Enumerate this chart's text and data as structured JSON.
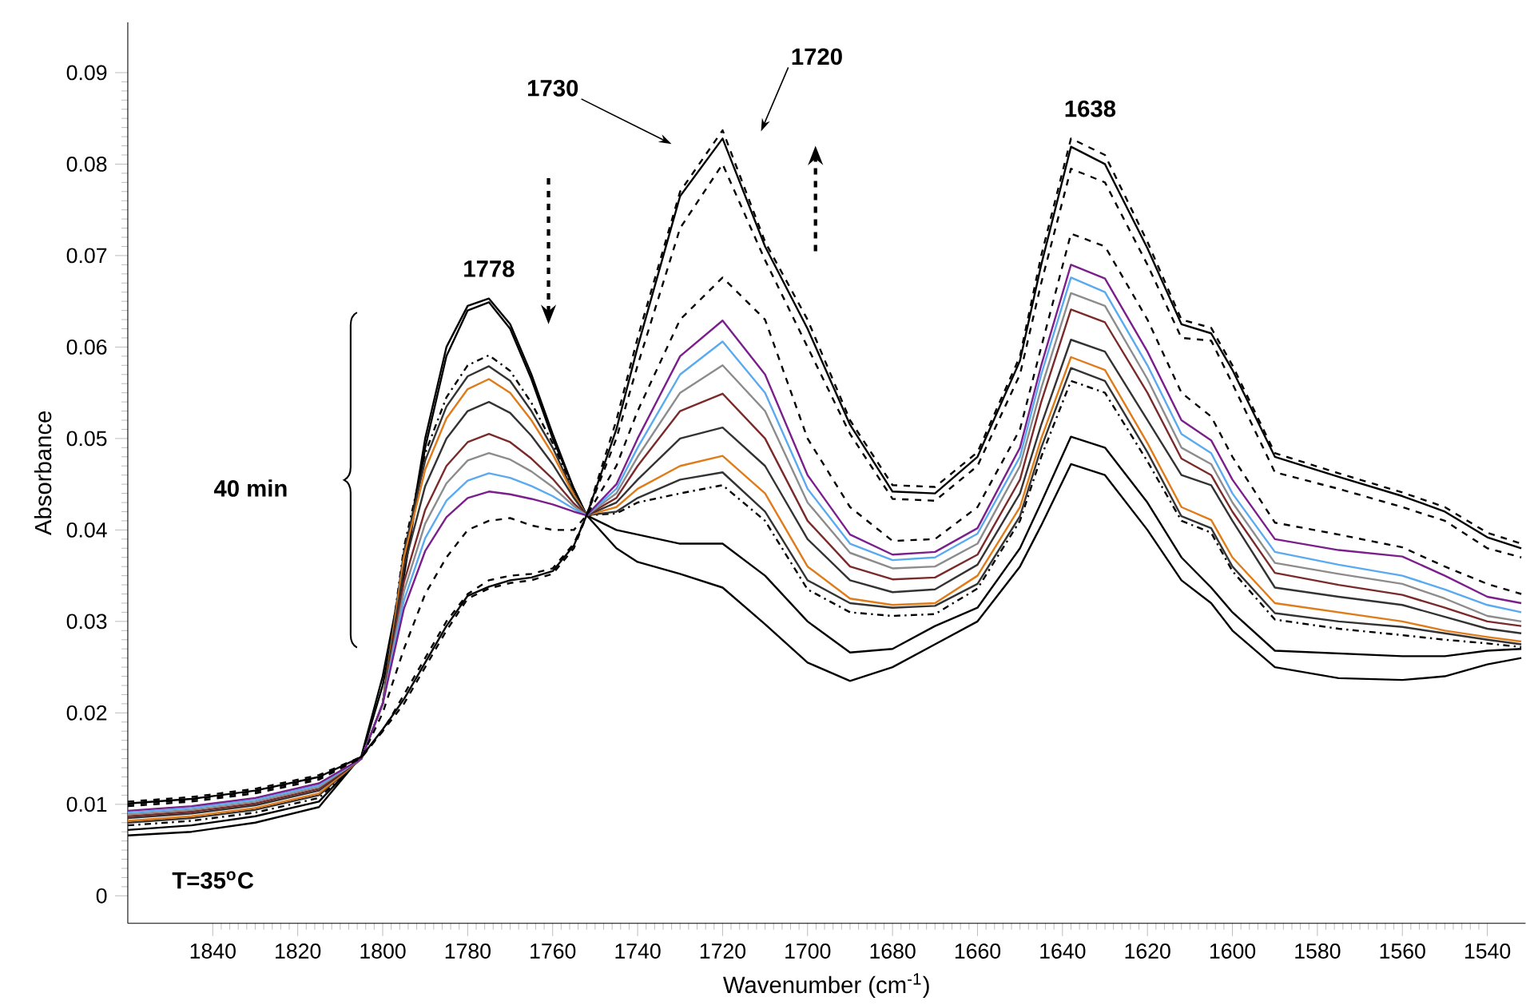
{
  "chart_data": {
    "type": "line",
    "xlabel": "Wavenumber (cm$^{-1}$)",
    "ylabel": "Absorbance",
    "xlim": [
      1860,
      1531
    ],
    "ylim": [
      -0.003,
      0.0955
    ],
    "xticks": [
      1840,
      1820,
      1800,
      1780,
      1760,
      1740,
      1720,
      1700,
      1680,
      1660,
      1640,
      1620,
      1600,
      1580,
      1560,
      1540
    ],
    "yticks": [
      0,
      0.01,
      0.02,
      0.03,
      0.04,
      0.05,
      0.06,
      0.07,
      0.08,
      0.09
    ],
    "x": [
      1860,
      1845,
      1830,
      1815,
      1805,
      1800,
      1795,
      1790,
      1785,
      1780,
      1775,
      1770,
      1765,
      1760,
      1755,
      1752,
      1745,
      1740,
      1730,
      1720,
      1710,
      1700,
      1690,
      1680,
      1670,
      1660,
      1650,
      1645,
      1638,
      1630,
      1620,
      1612,
      1605,
      1600,
      1590,
      1575,
      1560,
      1550,
      1540,
      1532
    ],
    "series": [
      {
        "color": "#000000",
        "line_style": "solid",
        "values": [
          0.0066,
          0.007,
          0.008,
          0.0097,
          0.0153,
          0.024,
          0.036,
          0.05,
          0.06,
          0.0645,
          0.0653,
          0.0625,
          0.057,
          0.0505,
          0.0445,
          0.0416,
          0.038,
          0.0365,
          0.0352,
          0.0337,
          0.0297,
          0.0255,
          0.0235,
          0.025,
          0.0275,
          0.03,
          0.036,
          0.0405,
          0.0472,
          0.046,
          0.04,
          0.0345,
          0.032,
          0.029,
          0.025,
          0.0238,
          0.0236,
          0.024,
          0.0253,
          0.026
        ]
      },
      {
        "color": "#000000",
        "line_style": "solid",
        "values": [
          0.0072,
          0.0077,
          0.0087,
          0.0103,
          0.0152,
          0.023,
          0.035,
          0.049,
          0.059,
          0.064,
          0.0649,
          0.062,
          0.0565,
          0.05,
          0.0445,
          0.0416,
          0.04,
          0.0395,
          0.0385,
          0.0385,
          0.035,
          0.03,
          0.0266,
          0.027,
          0.0295,
          0.0315,
          0.038,
          0.043,
          0.0502,
          0.049,
          0.043,
          0.037,
          0.0337,
          0.031,
          0.0268,
          0.0265,
          0.0262,
          0.0262,
          0.0268,
          0.027
        ]
      },
      {
        "color": "#000000",
        "line_style": "dashdot",
        "values": [
          0.0077,
          0.0082,
          0.0091,
          0.0107,
          0.0151,
          0.021,
          0.0381,
          0.0484,
          0.0545,
          0.058,
          0.0591,
          0.0574,
          0.0539,
          0.0495,
          0.0442,
          0.0416,
          0.0418,
          0.043,
          0.044,
          0.0449,
          0.041,
          0.0335,
          0.031,
          0.0306,
          0.0308,
          0.0336,
          0.041,
          0.048,
          0.0563,
          0.055,
          0.0475,
          0.041,
          0.0397,
          0.0355,
          0.0302,
          0.0292,
          0.0285,
          0.028,
          0.0276,
          0.0272
        ]
      },
      {
        "color": "#333333",
        "line_style": "solid",
        "values": [
          0.008,
          0.0085,
          0.0094,
          0.011,
          0.015,
          0.021,
          0.0376,
          0.0476,
          0.0535,
          0.0568,
          0.0579,
          0.0563,
          0.053,
          0.049,
          0.044,
          0.0416,
          0.042,
          0.0435,
          0.0455,
          0.0463,
          0.042,
          0.0345,
          0.032,
          0.0315,
          0.0317,
          0.0341,
          0.0415,
          0.049,
          0.0577,
          0.0563,
          0.0485,
          0.0415,
          0.0402,
          0.036,
          0.0309,
          0.03,
          0.0294,
          0.0287,
          0.028,
          0.0275
        ]
      },
      {
        "color": "#e07b1a",
        "line_style": "solid",
        "values": [
          0.0082,
          0.0087,
          0.0096,
          0.0112,
          0.015,
          0.021,
          0.037,
          0.0466,
          0.0522,
          0.0554,
          0.0565,
          0.055,
          0.052,
          0.0483,
          0.0438,
          0.0416,
          0.0425,
          0.0445,
          0.047,
          0.0481,
          0.044,
          0.036,
          0.0325,
          0.0318,
          0.032,
          0.035,
          0.0425,
          0.05,
          0.0589,
          0.0575,
          0.0495,
          0.0425,
          0.0411,
          0.037,
          0.032,
          0.031,
          0.03,
          0.029,
          0.0283,
          0.0278
        ]
      },
      {
        "color": "#333333",
        "line_style": "solid",
        "values": [
          0.0085,
          0.009,
          0.0099,
          0.0115,
          0.015,
          0.021,
          0.0359,
          0.0448,
          0.05,
          0.053,
          0.054,
          0.0528,
          0.0503,
          0.0472,
          0.0435,
          0.0416,
          0.043,
          0.0455,
          0.05,
          0.0512,
          0.047,
          0.039,
          0.0345,
          0.0332,
          0.0335,
          0.0362,
          0.044,
          0.0515,
          0.0608,
          0.0595,
          0.052,
          0.046,
          0.0449,
          0.041,
          0.0337,
          0.0327,
          0.0318,
          0.0305,
          0.0292,
          0.0287
        ]
      },
      {
        "color": "#7b2a2a",
        "line_style": "solid",
        "values": [
          0.0087,
          0.0092,
          0.0101,
          0.0117,
          0.015,
          0.021,
          0.0343,
          0.0422,
          0.047,
          0.0496,
          0.0505,
          0.0496,
          0.0478,
          0.0456,
          0.0429,
          0.0416,
          0.0435,
          0.047,
          0.053,
          0.0549,
          0.05,
          0.041,
          0.036,
          0.0346,
          0.0348,
          0.0373,
          0.0455,
          0.054,
          0.0641,
          0.0627,
          0.055,
          0.0478,
          0.046,
          0.042,
          0.0353,
          0.034,
          0.0329,
          0.0315,
          0.03,
          0.0295
        ]
      },
      {
        "color": "#8c8c8c",
        "line_style": "solid",
        "values": [
          0.0089,
          0.0094,
          0.0103,
          0.0119,
          0.015,
          0.021,
          0.0333,
          0.0407,
          0.0451,
          0.0476,
          0.0484,
          0.0477,
          0.0464,
          0.0447,
          0.0426,
          0.0416,
          0.044,
          0.048,
          0.055,
          0.058,
          0.053,
          0.043,
          0.0375,
          0.0358,
          0.036,
          0.0385,
          0.047,
          0.0555,
          0.0659,
          0.0645,
          0.0565,
          0.049,
          0.0472,
          0.043,
          0.0364,
          0.0352,
          0.0341,
          0.0325,
          0.0306,
          0.03
        ]
      },
      {
        "color": "#5aaaf0",
        "line_style": "solid",
        "values": [
          0.0091,
          0.0096,
          0.0105,
          0.0121,
          0.015,
          0.021,
          0.0323,
          0.0391,
          0.0432,
          0.0454,
          0.0462,
          0.0457,
          0.0448,
          0.0437,
          0.0423,
          0.0416,
          0.0445,
          0.049,
          0.057,
          0.0606,
          0.055,
          0.0445,
          0.0385,
          0.0367,
          0.037,
          0.0396,
          0.048,
          0.057,
          0.0676,
          0.066,
          0.058,
          0.0505,
          0.0484,
          0.044,
          0.0376,
          0.0362,
          0.035,
          0.0335,
          0.0318,
          0.031
        ]
      },
      {
        "color": "#7a1f8c",
        "line_style": "solid",
        "values": [
          0.0093,
          0.0098,
          0.0107,
          0.0123,
          0.015,
          0.021,
          0.0314,
          0.0377,
          0.0414,
          0.0435,
          0.0442,
          0.0439,
          0.0434,
          0.0428,
          0.042,
          0.0416,
          0.045,
          0.05,
          0.059,
          0.0629,
          0.057,
          0.046,
          0.0395,
          0.0373,
          0.0376,
          0.0402,
          0.049,
          0.058,
          0.069,
          0.0675,
          0.0595,
          0.052,
          0.0498,
          0.0455,
          0.039,
          0.0378,
          0.0371,
          0.035,
          0.0327,
          0.032
        ]
      },
      {
        "color": "#000000",
        "line_style": "dashed",
        "values": [
          0.0098,
          0.0103,
          0.0112,
          0.0127,
          0.0151,
          0.02,
          0.027,
          0.033,
          0.037,
          0.04,
          0.041,
          0.0413,
          0.0405,
          0.04,
          0.04,
          0.0416,
          0.047,
          0.053,
          0.063,
          0.0676,
          0.063,
          0.05,
          0.0425,
          0.0388,
          0.039,
          0.0425,
          0.051,
          0.06,
          0.0724,
          0.071,
          0.063,
          0.055,
          0.0524,
          0.048,
          0.0408,
          0.0395,
          0.0381,
          0.036,
          0.0341,
          0.033
        ]
      },
      {
        "color": "#000000",
        "line_style": "dashed",
        "values": [
          0.01,
          0.0105,
          0.0114,
          0.0129,
          0.0151,
          0.018,
          0.022,
          0.026,
          0.03,
          0.033,
          0.0345,
          0.035,
          0.0352,
          0.0358,
          0.0385,
          0.0416,
          0.05,
          0.058,
          0.073,
          0.08,
          0.0695,
          0.06,
          0.0505,
          0.0434,
          0.0432,
          0.047,
          0.057,
          0.067,
          0.0795,
          0.078,
          0.069,
          0.061,
          0.0607,
          0.056,
          0.0463,
          0.0445,
          0.0425,
          0.041,
          0.038,
          0.037
        ]
      },
      {
        "color": "#000000",
        "line_style": "dashed",
        "values": [
          0.0103,
          0.0108,
          0.0117,
          0.0132,
          0.0152,
          0.018,
          0.021,
          0.025,
          0.029,
          0.0325,
          0.0336,
          0.0342,
          0.0345,
          0.0352,
          0.038,
          0.0416,
          0.052,
          0.061,
          0.077,
          0.0837,
          0.0715,
          0.063,
          0.052,
          0.0449,
          0.0447,
          0.0485,
          0.059,
          0.07,
          0.0828,
          0.081,
          0.0715,
          0.063,
          0.0621,
          0.058,
          0.0484,
          0.0462,
          0.0441,
          0.0425,
          0.0397,
          0.0385
        ]
      },
      {
        "color": "#000000",
        "line_style": "solid",
        "values": [
          0.0101,
          0.0106,
          0.0115,
          0.013,
          0.0152,
          0.0182,
          0.0215,
          0.0255,
          0.0295,
          0.0328,
          0.0338,
          0.0345,
          0.0348,
          0.0355,
          0.0383,
          0.0416,
          0.051,
          0.06,
          0.0765,
          0.0828,
          0.071,
          0.062,
          0.0515,
          0.0442,
          0.044,
          0.048,
          0.0585,
          0.069,
          0.0819,
          0.08,
          0.0708,
          0.0625,
          0.0615,
          0.0575,
          0.048,
          0.0458,
          0.0437,
          0.042,
          0.0392,
          0.038
        ]
      }
    ],
    "annotations": [
      {
        "text": "1778",
        "x": 1775,
        "y": 0.0653
      },
      "1730",
      "1720",
      {
        "text": "1638",
        "x": 1636,
        "y": 0.0828
      },
      "40 min",
      "T=35$^{o}$C"
    ]
  }
}
